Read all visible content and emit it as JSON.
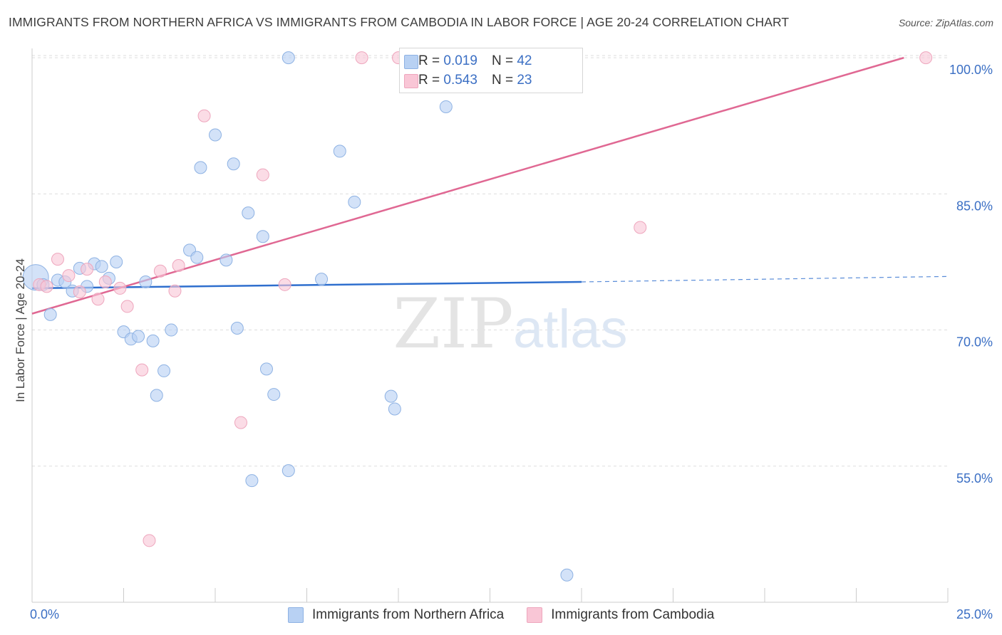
{
  "title": "IMMIGRANTS FROM NORTHERN AFRICA VS IMMIGRANTS FROM CAMBODIA IN LABOR FORCE | AGE 20-24 CORRELATION CHART",
  "source": "Source: ZipAtlas.com",
  "watermark": {
    "zip": "ZIP",
    "atlas": "atlas"
  },
  "colors": {
    "blue_fill": "#b8d1f3",
    "blue_stroke": "#8eb2e3",
    "blue_line": "#2f6fce",
    "pink_fill": "#f9c6d6",
    "pink_stroke": "#eea6bd",
    "pink_line": "#e06893",
    "axis_label": "#3b6fc4",
    "grid": "#dddddd"
  },
  "legend_top": [
    {
      "r_label": "R =",
      "r_value": "0.019",
      "n_label": "N =",
      "n_value": "42"
    },
    {
      "r_label": "R =",
      "r_value": "0.543",
      "n_label": "N =",
      "n_value": "23"
    }
  ],
  "legend_bottom": [
    "Immigrants from Northern Africa",
    "Immigrants from Cambodia"
  ],
  "chart_data": {
    "type": "scatter",
    "title": "IMMIGRANTS FROM NORTHERN AFRICA VS IMMIGRANTS FROM CAMBODIA IN LABOR FORCE | AGE 20-24 CORRELATION CHART",
    "xlabel": "",
    "ylabel": "In Labor Force | Age 20-24",
    "xlim": [
      0,
      25
    ],
    "ylim": [
      40,
      101.5
    ],
    "x_tick_labels": [
      "0.0%",
      "25.0%"
    ],
    "x_tick_values": [
      0,
      25
    ],
    "y_ticks": [
      {
        "value": 100,
        "label": "100.0%"
      },
      {
        "value": 85,
        "label": "85.0%"
      },
      {
        "value": 70,
        "label": "70.0%"
      },
      {
        "value": 55,
        "label": "55.0%"
      }
    ],
    "grid": true,
    "legend_position": "top-center",
    "series": [
      {
        "name": "Immigrants from Northern Africa",
        "color": "blue",
        "r": 0.019,
        "n": 42,
        "trend": {
          "x0": 0,
          "y0": 74.6,
          "x1": 15,
          "y1": 75.3,
          "dashed_to": 25,
          "dashed_y": 75.9
        },
        "points": [
          [
            0.1,
            75.8,
            1
          ],
          [
            0.3,
            75.0,
            0
          ],
          [
            0.5,
            71.7,
            0
          ],
          [
            0.7,
            75.5,
            0
          ],
          [
            0.9,
            75.3,
            0
          ],
          [
            1.1,
            74.3,
            0
          ],
          [
            1.3,
            76.8,
            0
          ],
          [
            1.5,
            74.8,
            0
          ],
          [
            1.7,
            77.3,
            0
          ],
          [
            1.9,
            77.0,
            0
          ],
          [
            2.1,
            75.7,
            0
          ],
          [
            2.3,
            77.5,
            0
          ],
          [
            2.5,
            69.8,
            0
          ],
          [
            2.7,
            69.0,
            0
          ],
          [
            2.9,
            69.3,
            0
          ],
          [
            3.1,
            75.3,
            0
          ],
          [
            3.3,
            68.8,
            0
          ],
          [
            3.4,
            62.8,
            0
          ],
          [
            3.6,
            65.5,
            0
          ],
          [
            3.8,
            70.0,
            0
          ],
          [
            4.3,
            78.8,
            0
          ],
          [
            4.5,
            78.0,
            0
          ],
          [
            4.6,
            87.9,
            0
          ],
          [
            5.0,
            91.5,
            0
          ],
          [
            5.3,
            77.7,
            0
          ],
          [
            5.5,
            88.3,
            0
          ],
          [
            5.6,
            70.2,
            0
          ],
          [
            5.9,
            82.9,
            0
          ],
          [
            6.0,
            53.4,
            0
          ],
          [
            6.3,
            80.3,
            0
          ],
          [
            6.4,
            65.7,
            0
          ],
          [
            6.6,
            62.9,
            0
          ],
          [
            7.0,
            54.5,
            0
          ],
          [
            7.0,
            100.0,
            0
          ],
          [
            7.9,
            75.6,
            0
          ],
          [
            8.4,
            89.7,
            0
          ],
          [
            8.8,
            84.1,
            0
          ],
          [
            9.8,
            62.7,
            0
          ],
          [
            9.9,
            61.3,
            0
          ],
          [
            11.3,
            94.6,
            0
          ],
          [
            13.5,
            100.0,
            0
          ],
          [
            14.6,
            43.0,
            0
          ]
        ]
      },
      {
        "name": "Immigrants from Cambodia",
        "color": "pink",
        "r": 0.543,
        "n": 23,
        "trend": {
          "x0": 0,
          "y0": 71.8,
          "x1": 23.8,
          "y1": 100.0
        },
        "points": [
          [
            0.2,
            75.0,
            0
          ],
          [
            0.4,
            74.8,
            0
          ],
          [
            0.7,
            77.8,
            0
          ],
          [
            1.0,
            76.0,
            0
          ],
          [
            1.3,
            74.2,
            0
          ],
          [
            1.5,
            76.7,
            0
          ],
          [
            1.8,
            73.4,
            0
          ],
          [
            2.0,
            75.3,
            0
          ],
          [
            2.4,
            74.6,
            0
          ],
          [
            2.6,
            72.6,
            0
          ],
          [
            3.0,
            65.6,
            0
          ],
          [
            3.2,
            46.8,
            0
          ],
          [
            3.5,
            76.5,
            0
          ],
          [
            3.9,
            74.3,
            0
          ],
          [
            4.0,
            77.1,
            0
          ],
          [
            4.7,
            93.6,
            0
          ],
          [
            5.7,
            59.8,
            0
          ],
          [
            6.3,
            87.1,
            0
          ],
          [
            6.9,
            75.0,
            0
          ],
          [
            9.0,
            100.0,
            0
          ],
          [
            10.0,
            100.0,
            0
          ],
          [
            16.6,
            81.3,
            0
          ],
          [
            24.4,
            100.0,
            0
          ]
        ]
      }
    ]
  }
}
